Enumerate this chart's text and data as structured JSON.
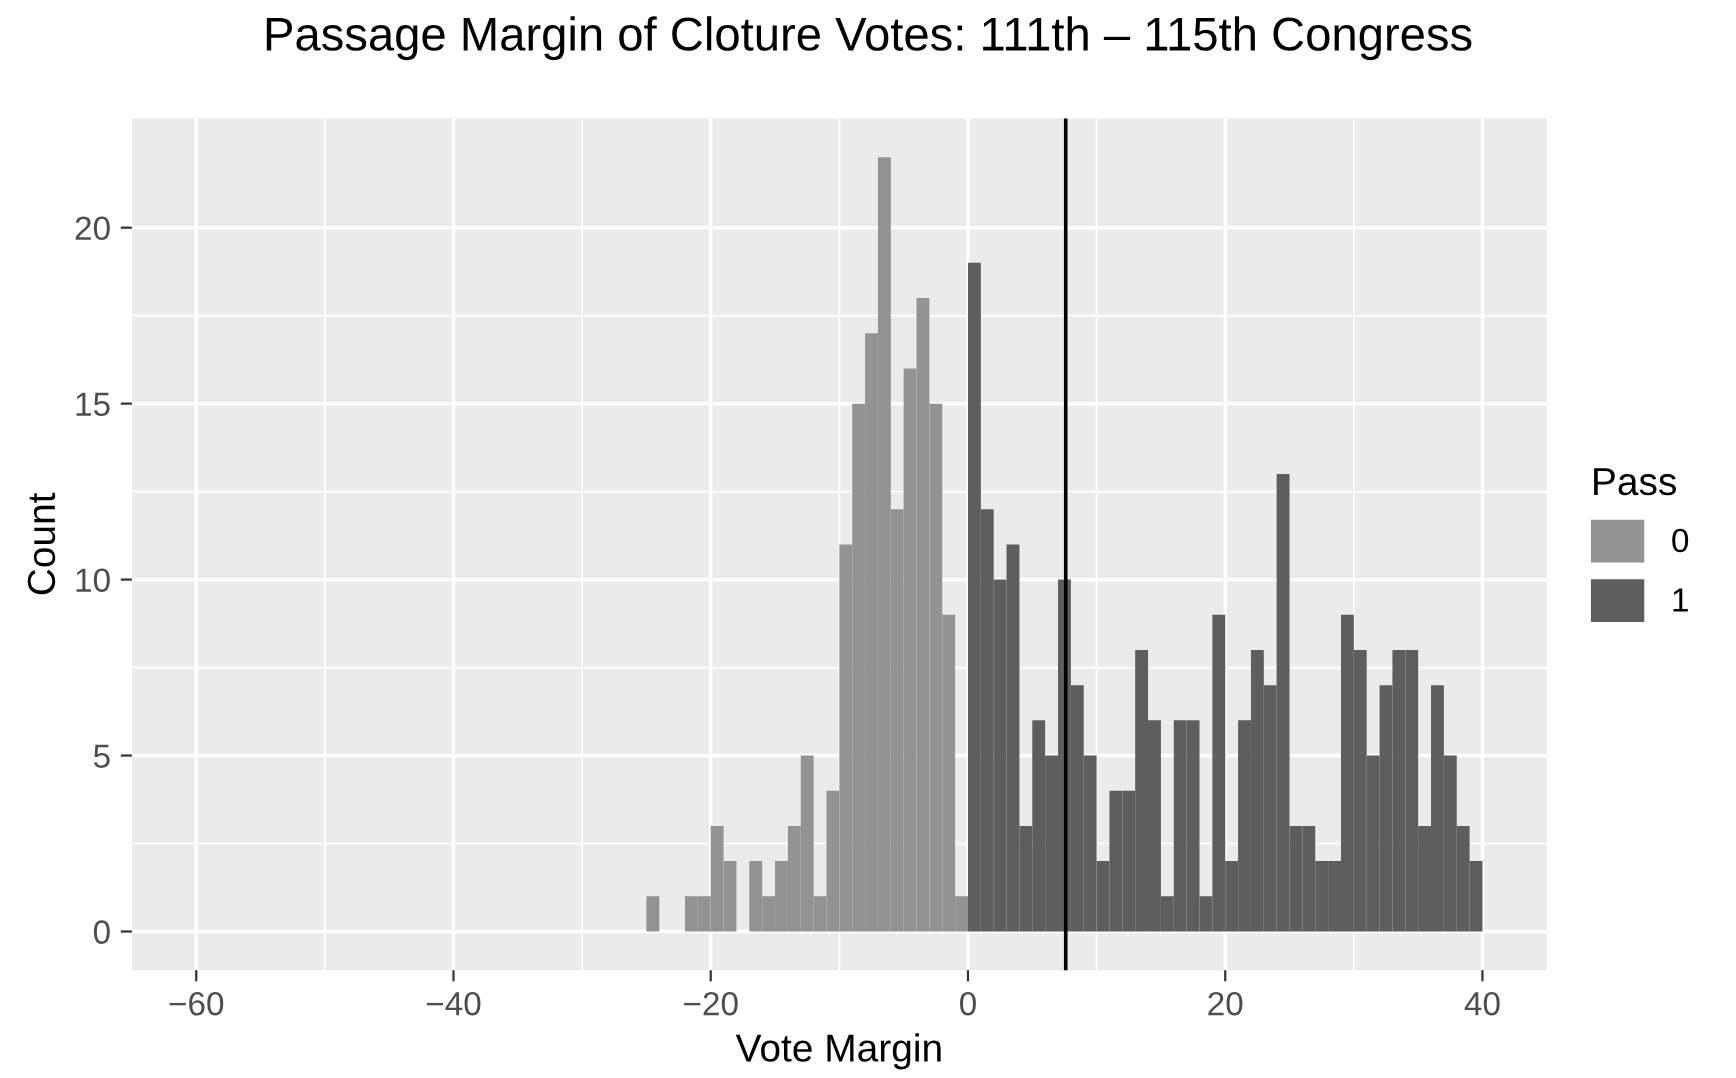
{
  "chart_data": {
    "type": "histogram",
    "title": "Passage Margin of Cloture Votes: 111th – 115th Congress",
    "xlabel": "Vote Margin",
    "ylabel": "Count",
    "legend_title": "Pass",
    "bins": [
      -25,
      -24,
      -23,
      -22,
      -21,
      -20,
      -19,
      -18,
      -17,
      -16,
      -15,
      -14,
      -13,
      -12,
      -11,
      -10,
      -9,
      -8,
      -7,
      -6,
      -5,
      -4,
      -3,
      -2,
      -1,
      0,
      1,
      2,
      3,
      4,
      5,
      6,
      7,
      8,
      9,
      10,
      11,
      12,
      13,
      14,
      15,
      16,
      17,
      18,
      19,
      20,
      21,
      22,
      23,
      24,
      25,
      26,
      27,
      28,
      29,
      30,
      31,
      32,
      33,
      34,
      35,
      36,
      37,
      38,
      39,
      40
    ],
    "series": [
      {
        "name": "0",
        "color": "#939393",
        "values": [
          1,
          0,
          0,
          1,
          1,
          3,
          2,
          0,
          2,
          1,
          2,
          3,
          5,
          1,
          4,
          11,
          15,
          17,
          22,
          12,
          16,
          18,
          15,
          9,
          1,
          0,
          0,
          0,
          0,
          0,
          0,
          0,
          0,
          0,
          0,
          0,
          0,
          0,
          0,
          0,
          0,
          0,
          0,
          0,
          0,
          0,
          0,
          0,
          0,
          0,
          0,
          0,
          0,
          0,
          0,
          0,
          0,
          0,
          0,
          0,
          0,
          0,
          0,
          0,
          0
        ]
      },
      {
        "name": "1",
        "color": "#5e5e5e",
        "values": [
          0,
          0,
          0,
          0,
          0,
          0,
          0,
          0,
          0,
          0,
          0,
          0,
          0,
          0,
          0,
          0,
          0,
          0,
          0,
          0,
          0,
          0,
          0,
          0,
          0,
          19,
          12,
          10,
          11,
          3,
          6,
          5,
          10,
          7,
          5,
          2,
          4,
          4,
          8,
          6,
          1,
          6,
          6,
          1,
          9,
          2,
          6,
          8,
          7,
          13,
          3,
          3,
          2,
          2,
          9,
          8,
          5,
          7,
          8,
          8,
          3,
          7,
          5,
          3,
          2
        ]
      }
    ],
    "xlim": [
      -65,
      45
    ],
    "xticks": [
      -60,
      -40,
      -20,
      0,
      20,
      40
    ],
    "ylim": [
      -1.1,
      23.1
    ],
    "yticks": [
      0,
      5,
      10,
      15,
      20
    ],
    "ref_lines": [
      {
        "axis": "x",
        "value": 7.6,
        "color": "#000000"
      }
    ],
    "grid": true,
    "legend": "right"
  }
}
